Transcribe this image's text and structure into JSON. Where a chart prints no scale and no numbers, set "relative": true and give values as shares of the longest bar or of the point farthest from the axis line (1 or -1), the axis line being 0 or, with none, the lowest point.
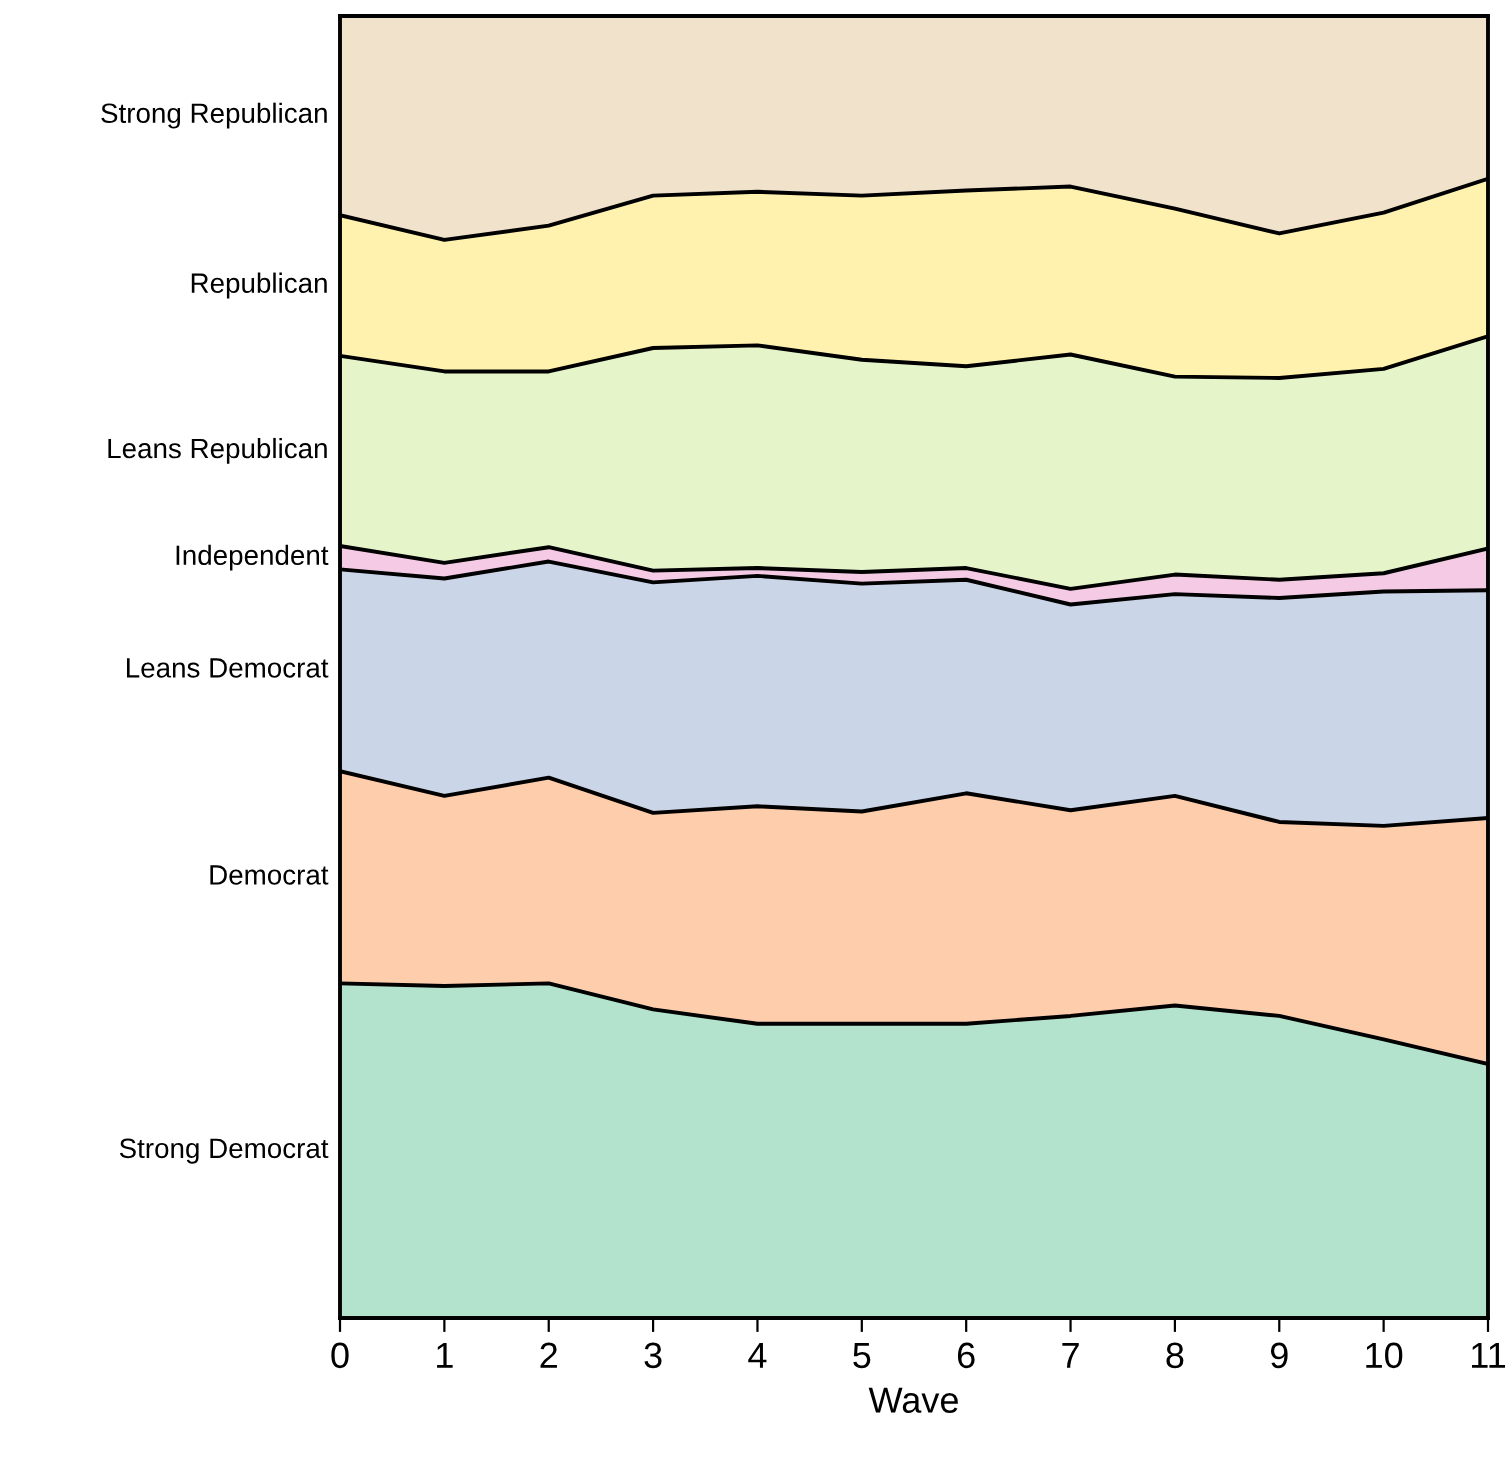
{
  "chart_data": {
    "type": "area",
    "stacked": true,
    "relative": true,
    "xlabel": "Wave",
    "x": [
      0,
      1,
      2,
      3,
      4,
      5,
      6,
      7,
      8,
      9,
      10,
      11
    ],
    "xlim": [
      0,
      11
    ],
    "xticks": [
      0,
      1,
      2,
      3,
      4,
      5,
      6,
      7,
      8,
      9,
      10,
      11
    ],
    "tick_labels": "x",
    "grid": false,
    "legend": false,
    "series": [
      {
        "name": "Strong Democrat",
        "color": "#b3e2cd",
        "values": [
          0.257,
          0.255,
          0.257,
          0.237,
          0.226,
          0.226,
          0.226,
          0.232,
          0.24,
          0.232,
          0.214,
          0.195
        ]
      },
      {
        "name": "Democrat",
        "color": "#fdcdac",
        "values": [
          0.163,
          0.146,
          0.158,
          0.151,
          0.167,
          0.163,
          0.177,
          0.158,
          0.161,
          0.149,
          0.164,
          0.189
        ]
      },
      {
        "name": "Leans Democrat",
        "color": "#cbd5e8",
        "values": [
          0.155,
          0.167,
          0.166,
          0.177,
          0.177,
          0.175,
          0.164,
          0.158,
          0.155,
          0.172,
          0.18,
          0.175
        ]
      },
      {
        "name": "Independent",
        "color": "#f4cae4",
        "values": [
          0.018,
          0.012,
          0.011,
          0.009,
          0.006,
          0.009,
          0.009,
          0.012,
          0.015,
          0.014,
          0.014,
          0.032
        ]
      },
      {
        "name": "Leans Republican",
        "color": "#e6f5c9",
        "values": [
          0.146,
          0.147,
          0.135,
          0.171,
          0.171,
          0.163,
          0.155,
          0.18,
          0.152,
          0.155,
          0.157,
          0.163
        ]
      },
      {
        "name": "Republican",
        "color": "#fff2ae",
        "values": [
          0.108,
          0.101,
          0.112,
          0.117,
          0.118,
          0.126,
          0.135,
          0.129,
          0.129,
          0.111,
          0.12,
          0.121
        ]
      },
      {
        "name": "Strong Republican",
        "color": "#f1e2cc",
        "values": [
          0.153,
          0.172,
          0.161,
          0.138,
          0.135,
          0.138,
          0.134,
          0.131,
          0.148,
          0.167,
          0.151,
          0.125
        ]
      }
    ]
  }
}
